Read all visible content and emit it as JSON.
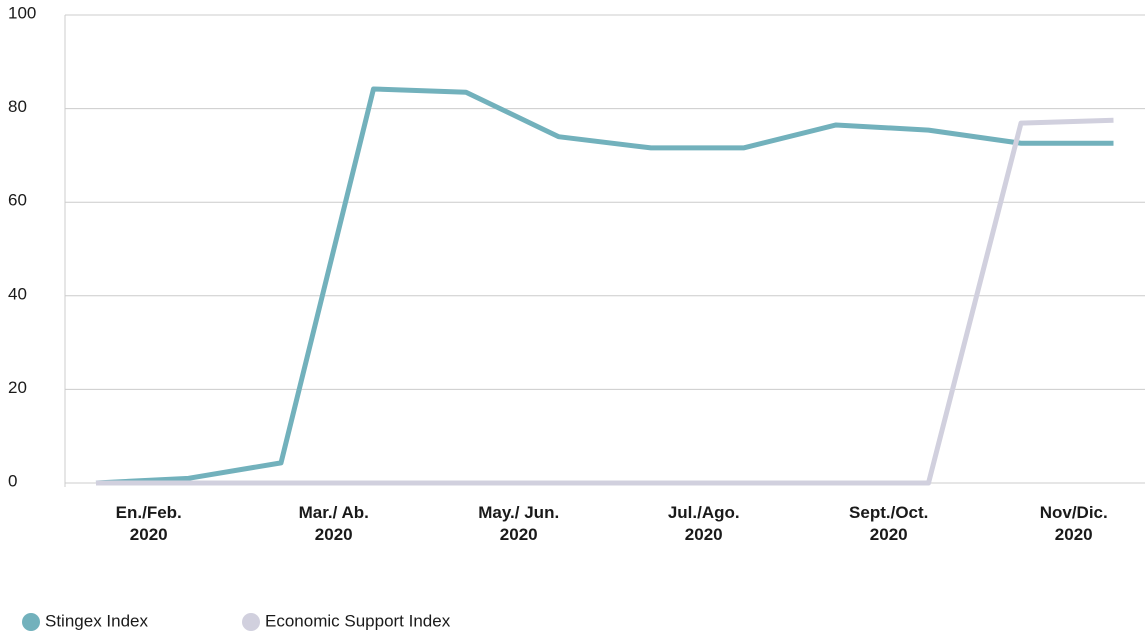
{
  "chart_data": {
    "type": "line",
    "categories": [
      "En./Feb.\n2020",
      null,
      "Mar./ Ab.\n2020",
      null,
      "May./ Jun.\n2020",
      null,
      "Jul./Ago.\n2020",
      null,
      "Sept./Oct.\n2020",
      null,
      "Nov/Dic.\n2020",
      null
    ],
    "series": [
      {
        "name": "Stingex Index",
        "color": "#72b1bc",
        "values": [
          0,
          1,
          4.3,
          84.2,
          83.5,
          74,
          71.6,
          71.6,
          76.5,
          75.4,
          72.6,
          72.6
        ]
      },
      {
        "name": "Economic Support Index",
        "color": "#d1d0de",
        "values": [
          0,
          0,
          0,
          0,
          0,
          0,
          0,
          0,
          0,
          0,
          76.9,
          77.5
        ]
      }
    ],
    "ylim": [
      0,
      100
    ],
    "yticks": [
      0,
      20,
      40,
      60,
      80,
      100
    ],
    "grid": true,
    "legend": "bottom-left"
  }
}
